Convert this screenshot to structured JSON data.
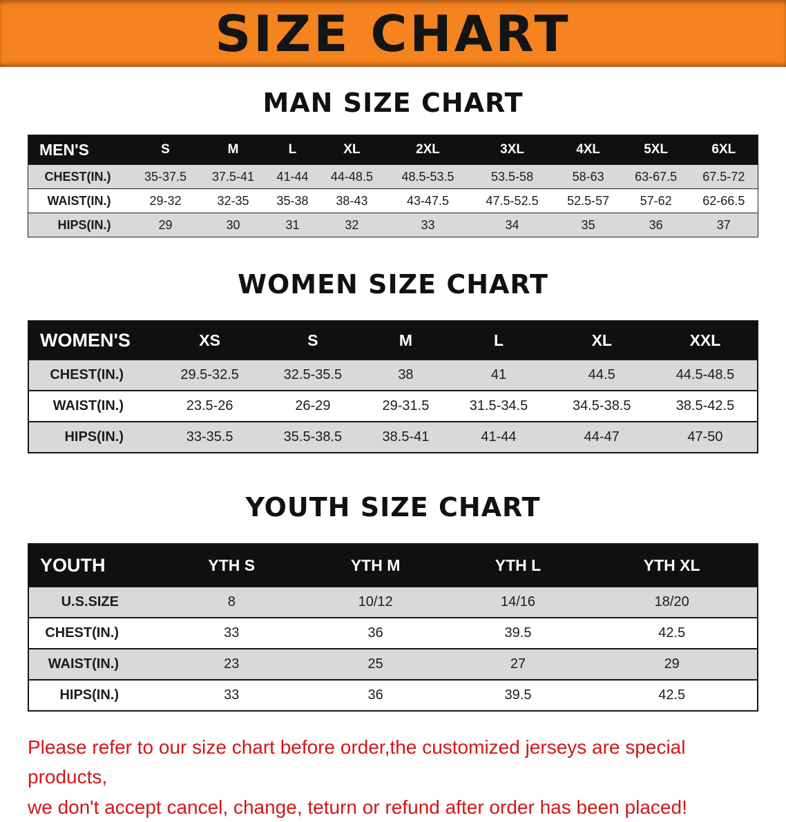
{
  "banner": {
    "title": "SIZE CHART"
  },
  "colors": {
    "banner_orange": "#F5831F",
    "table_header_black": "#101010",
    "row_gray": "#D9D9D9",
    "note_red": "#D31616"
  },
  "chart_data": [
    {
      "type": "table",
      "title": "MAN SIZE CHART",
      "columns": [
        "MEN'S",
        "S",
        "M",
        "L",
        "XL",
        "2XL",
        "3XL",
        "4XL",
        "5XL",
        "6XL"
      ],
      "rows": [
        [
          "CHEST(IN.)",
          "35-37.5",
          "37.5-41",
          "41-44",
          "44-48.5",
          "48.5-53.5",
          "53.5-58",
          "58-63",
          "63-67.5",
          "67.5-72"
        ],
        [
          "WAIST(IN.)",
          "29-32",
          "32-35",
          "35-38",
          "38-43",
          "43-47.5",
          "47.5-52.5",
          "52.5-57",
          "57-62",
          "62-66.5"
        ],
        [
          "HIPS(IN.)",
          "29",
          "30",
          "31",
          "32",
          "33",
          "34",
          "35",
          "36",
          "37"
        ]
      ],
      "layout": {
        "header_style": "black-band",
        "striped": true
      }
    },
    {
      "type": "table",
      "title": "WOMEN SIZE CHART",
      "columns": [
        "WOMEN'S",
        "XS",
        "S",
        "M",
        "L",
        "XL",
        "XXL"
      ],
      "rows": [
        [
          "CHEST(IN.)",
          "29.5-32.5",
          "32.5-35.5",
          "38",
          "41",
          "44.5",
          "44.5-48.5"
        ],
        [
          "WAIST(IN.)",
          "23.5-26",
          "26-29",
          "29-31.5",
          "31.5-34.5",
          "34.5-38.5",
          "38.5-42.5"
        ],
        [
          "HIPS(IN.)",
          "33-35.5",
          "35.5-38.5",
          "38.5-41",
          "41-44",
          "44-47",
          "47-50"
        ]
      ],
      "layout": {
        "header_style": "black-band",
        "striped": true
      }
    },
    {
      "type": "table",
      "title": "YOUTH SIZE CHART",
      "columns": [
        "YOUTH",
        "YTH S",
        "YTH M",
        "YTH L",
        "YTH XL"
      ],
      "rows": [
        [
          "U.S.SIZE",
          "8",
          "10/12",
          "14/16",
          "18/20"
        ],
        [
          "CHEST(IN.)",
          "33",
          "36",
          "39.5",
          "42.5"
        ],
        [
          "WAIST(IN.)",
          "23",
          "25",
          "27",
          "29"
        ],
        [
          "HIPS(IN.)",
          "33",
          "36",
          "39.5",
          "42.5"
        ]
      ],
      "layout": {
        "header_style": "black-band",
        "striped": true
      }
    }
  ],
  "note": {
    "line1": "Please refer to our size chart before order,the customized jerseys are special products,",
    "line2": "we don't accept cancel, change, teturn or refund after order has been placed!"
  }
}
